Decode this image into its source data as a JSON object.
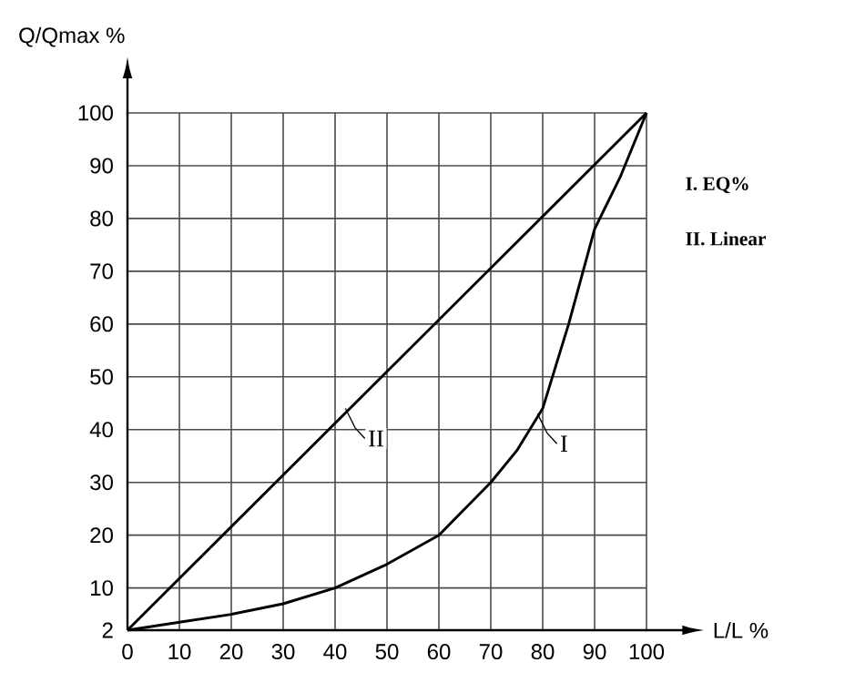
{
  "chart_data": {
    "type": "line",
    "xlabel": "L/L %",
    "ylabel": "Q/Qmax %",
    "series": [
      {
        "name": "I. EQ%",
        "color": "#000000",
        "x": [
          0,
          10,
          20,
          30,
          40,
          50,
          60,
          70,
          75,
          80,
          85,
          90,
          95,
          100
        ],
        "values": [
          2,
          3.5,
          5,
          7,
          10,
          14.5,
          20,
          30,
          36,
          44,
          60,
          78,
          88,
          100
        ]
      },
      {
        "name": "II. Linear",
        "color": "#000000",
        "x": [
          0,
          100
        ],
        "values": [
          2,
          100
        ]
      }
    ],
    "xlim": [
      0,
      100
    ],
    "ylim": [
      2,
      100
    ],
    "xticks": [
      0,
      10,
      20,
      30,
      40,
      50,
      60,
      70,
      80,
      90,
      100
    ],
    "yticks": [
      2,
      10,
      20,
      30,
      40,
      50,
      60,
      70,
      80,
      90,
      100
    ],
    "grid": true,
    "legend": "right",
    "marker": "none",
    "line_style": "solid",
    "annotations": [
      {
        "text": "II",
        "x": 42,
        "y": 44
      },
      {
        "text": "I",
        "x": 79,
        "y": 43
      }
    ]
  }
}
